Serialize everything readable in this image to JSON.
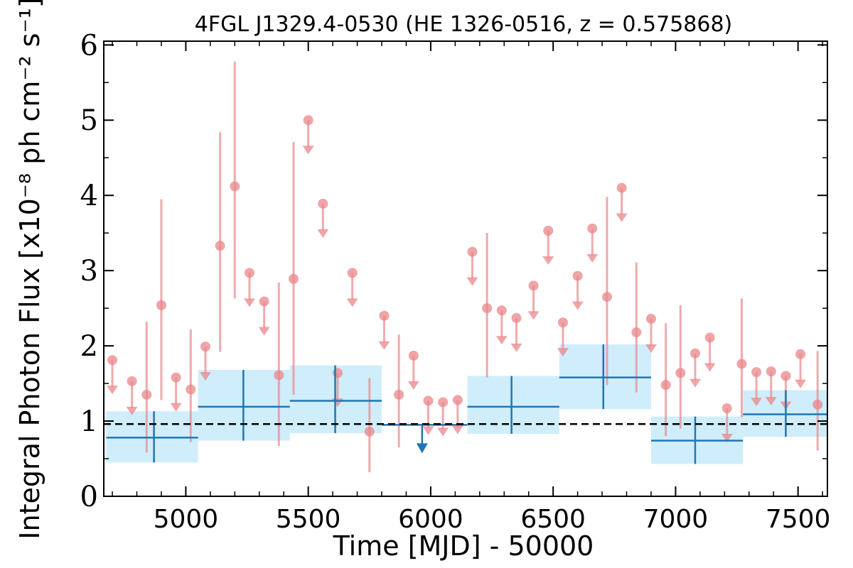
{
  "chart_data": {
    "type": "scatter",
    "title": "4FGL J1329.4-0530 (HE 1326-0516, z = 0.575868)",
    "xlabel": "Time [MJD] - 50000",
    "ylabel": "Integral Photon Flux [x10⁻⁸ ph cm⁻² s⁻¹]",
    "xlim": [
      4665,
      7620
    ],
    "ylim": [
      0,
      6.05
    ],
    "xticks": [
      5000,
      5500,
      6000,
      6500,
      7000,
      7500
    ],
    "xtick_labels": [
      "5000",
      "5500",
      "6000",
      "6500",
      "7000",
      "7500"
    ],
    "yticks": [
      0,
      1,
      2,
      3,
      4,
      5,
      6
    ],
    "ytick_labels": [
      "0",
      "1",
      "2",
      "3",
      "4",
      "5",
      "6"
    ],
    "grid": false,
    "colors": {
      "short_bins": "#e9868a",
      "long_bins": "#1f77b4",
      "long_bins_band": "#a9dff8",
      "mean_line": "#000000"
    },
    "mean_flux": 0.96,
    "series": [
      {
        "bin_width_mjd": 60,
        "detections": [
          {
            "x": 4840,
            "y": 1.35,
            "ylo": 0.58,
            "yhi": 2.32
          },
          {
            "x": 4900,
            "y": 2.54,
            "ylo": 1.28,
            "yhi": 3.95
          },
          {
            "x": 5020,
            "y": 1.42,
            "ylo": 0.72,
            "yhi": 2.22
          },
          {
            "x": 5140,
            "y": 3.33,
            "ylo": 1.92,
            "yhi": 4.84
          },
          {
            "x": 5200,
            "y": 4.12,
            "ylo": 2.63,
            "yhi": 5.78
          },
          {
            "x": 5380,
            "y": 1.61,
            "ylo": 0.67,
            "yhi": 2.84
          },
          {
            "x": 5440,
            "y": 2.89,
            "ylo": 1.35,
            "yhi": 4.71
          },
          {
            "x": 5750,
            "y": 0.86,
            "ylo": 0.32,
            "yhi": 1.57
          },
          {
            "x": 5870,
            "y": 1.35,
            "ylo": 0.65,
            "yhi": 2.15
          },
          {
            "x": 6230,
            "y": 2.5,
            "ylo": 1.58,
            "yhi": 3.5
          },
          {
            "x": 6720,
            "y": 2.65,
            "ylo": 1.48,
            "yhi": 3.98
          },
          {
            "x": 6840,
            "y": 2.18,
            "ylo": 1.38,
            "yhi": 3.11
          },
          {
            "x": 6960,
            "y": 1.48,
            "ylo": 0.8,
            "yhi": 2.3
          },
          {
            "x": 7020,
            "y": 1.64,
            "ylo": 0.9,
            "yhi": 2.54
          },
          {
            "x": 7270,
            "y": 1.76,
            "ylo": 1.05,
            "yhi": 2.63
          },
          {
            "x": 7580,
            "y": 1.22,
            "ylo": 0.61,
            "yhi": 1.93
          }
        ],
        "upper_limits": [
          {
            "x": 4700,
            "y": 1.81
          },
          {
            "x": 4780,
            "y": 1.53
          },
          {
            "x": 4960,
            "y": 1.58
          },
          {
            "x": 5080,
            "y": 1.99
          },
          {
            "x": 5260,
            "y": 2.97
          },
          {
            "x": 5320,
            "y": 2.59
          },
          {
            "x": 5500,
            "y": 5.0
          },
          {
            "x": 5560,
            "y": 3.89
          },
          {
            "x": 5620,
            "y": 1.64
          },
          {
            "x": 5680,
            "y": 2.97
          },
          {
            "x": 5810,
            "y": 2.4
          },
          {
            "x": 5930,
            "y": 1.87
          },
          {
            "x": 5990,
            "y": 1.27
          },
          {
            "x": 6050,
            "y": 1.25
          },
          {
            "x": 6110,
            "y": 1.28
          },
          {
            "x": 6170,
            "y": 3.25
          },
          {
            "x": 6290,
            "y": 2.47
          },
          {
            "x": 6350,
            "y": 2.37
          },
          {
            "x": 6420,
            "y": 2.8
          },
          {
            "x": 6480,
            "y": 3.53
          },
          {
            "x": 6540,
            "y": 2.31
          },
          {
            "x": 6600,
            "y": 2.93
          },
          {
            "x": 6660,
            "y": 3.56
          },
          {
            "x": 6780,
            "y": 4.1
          },
          {
            "x": 6900,
            "y": 2.36
          },
          {
            "x": 7080,
            "y": 1.9
          },
          {
            "x": 7140,
            "y": 2.11
          },
          {
            "x": 7210,
            "y": 1.17
          },
          {
            "x": 7330,
            "y": 1.65
          },
          {
            "x": 7390,
            "y": 1.66
          },
          {
            "x": 7450,
            "y": 1.6
          },
          {
            "x": 7510,
            "y": 1.89
          }
        ]
      },
      {
        "bins": [
          {
            "x0": 4675,
            "x1": 5050,
            "x": 4870,
            "y": 0.78,
            "ylo": 0.45,
            "yhi": 1.13,
            "band": [
              0.45,
              1.13
            ]
          },
          {
            "x0": 5050,
            "x1": 5425,
            "x": 5235,
            "y": 1.19,
            "ylo": 0.74,
            "yhi": 1.68,
            "band": [
              0.74,
              1.68
            ]
          },
          {
            "x0": 5425,
            "x1": 5800,
            "x": 5610,
            "y": 1.27,
            "ylo": 0.84,
            "yhi": 1.74,
            "band": [
              0.84,
              1.74
            ]
          },
          {
            "x0": 6150,
            "x1": 6525,
            "x": 6330,
            "y": 1.19,
            "ylo": 0.83,
            "yhi": 1.6,
            "band": [
              0.83,
              1.6
            ]
          },
          {
            "x0": 6525,
            "x1": 6900,
            "x": 6705,
            "y": 1.58,
            "ylo": 1.16,
            "yhi": 2.02,
            "band": [
              1.16,
              2.02
            ]
          },
          {
            "x0": 6900,
            "x1": 7275,
            "x": 7080,
            "y": 0.74,
            "ylo": 0.43,
            "yhi": 1.06,
            "band": [
              0.43,
              1.06
            ]
          },
          {
            "x0": 7275,
            "x1": 7650,
            "x": 7450,
            "y": 1.09,
            "ylo": 0.79,
            "yhi": 1.41,
            "band": [
              0.79,
              1.41
            ]
          }
        ],
        "upper_limits": [
          {
            "x0": 5800,
            "x1": 6150,
            "x": 5965,
            "y": 0.95
          }
        ]
      }
    ]
  }
}
